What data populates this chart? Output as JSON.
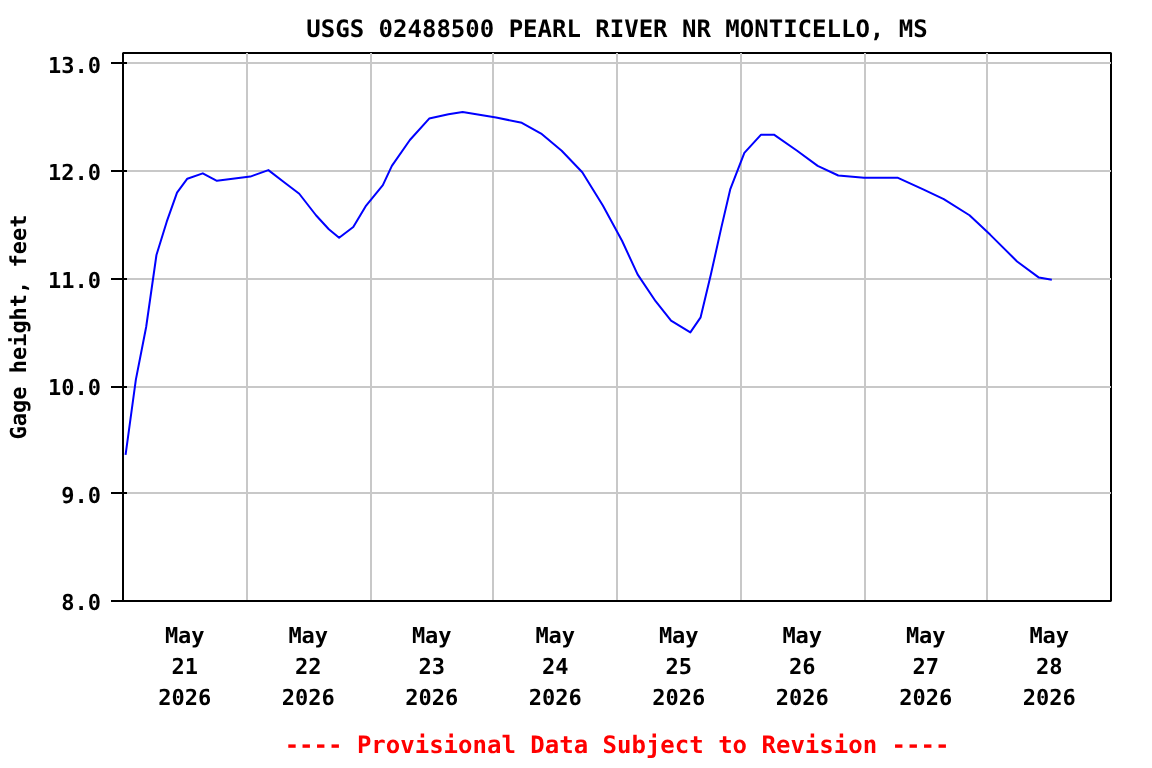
{
  "chart_data": {
    "type": "line",
    "title": "USGS 02488500 PEARL RIVER NR MONTICELLO, MS",
    "ylabel": "Gage height, feet",
    "annotations": [
      "---- Provisional Data Subject to Revision ----"
    ],
    "x": [
      "2026-05-21T00:30",
      "2026-05-21T02:30",
      "2026-05-21T04:30",
      "2026-05-21T06:30",
      "2026-05-21T08:30",
      "2026-05-21T10:30",
      "2026-05-21T12:30",
      "2026-05-21T15:30",
      "2026-05-21T18:15",
      "2026-05-22T00:45",
      "2026-05-22T04:15",
      "2026-05-22T07:15",
      "2026-05-22T10:15",
      "2026-05-22T13:30",
      "2026-05-22T16:00",
      "2026-05-22T18:00",
      "2026-05-22T20:45",
      "2026-05-22T23:15",
      "2026-05-23T02:30",
      "2026-05-23T04:15",
      "2026-05-23T07:45",
      "2026-05-23T11:30",
      "2026-05-23T15:15",
      "2026-05-23T18:00",
      "2026-05-24T00:30",
      "2026-05-24T05:30",
      "2026-05-24T09:15",
      "2026-05-24T13:15",
      "2026-05-24T17:15",
      "2026-05-24T21:15",
      "2026-05-25T01:00",
      "2026-05-25T04:00",
      "2026-05-25T07:30",
      "2026-05-25T10:30",
      "2026-05-25T14:15",
      "2026-05-25T16:15",
      "2026-05-25T18:15",
      "2026-05-25T20:15",
      "2026-05-25T22:00",
      "2026-05-26T00:45",
      "2026-05-26T04:00",
      "2026-05-26T06:30",
      "2026-05-26T11:00",
      "2026-05-26T15:00",
      "2026-05-26T19:00",
      "2026-05-27T00:00",
      "2026-05-27T06:30",
      "2026-05-27T11:30",
      "2026-05-27T15:30",
      "2026-05-27T20:30",
      "2026-05-28T00:30",
      "2026-05-28T05:45",
      "2026-05-28T10:00",
      "2026-05-28T12:30"
    ],
    "series": [
      {
        "color": "#0000ff",
        "values": [
          9.36,
          10.06,
          10.55,
          11.22,
          11.53,
          11.8,
          11.93,
          11.98,
          11.91,
          11.95,
          12.01,
          11.9,
          11.79,
          11.59,
          11.46,
          11.38,
          11.48,
          11.68,
          11.87,
          12.05,
          12.29,
          12.49,
          12.53,
          12.55,
          12.5,
          12.45,
          12.35,
          12.19,
          11.99,
          11.68,
          11.35,
          11.04,
          10.79,
          10.61,
          10.5,
          10.64,
          11.04,
          11.47,
          11.83,
          12.17,
          12.34,
          12.34,
          12.19,
          12.05,
          11.96,
          11.94,
          11.94,
          11.83,
          11.74,
          11.59,
          11.41,
          11.16,
          11.01,
          10.99
        ]
      }
    ],
    "xlim": [
      "2026-05-21",
      "2026-05-29"
    ],
    "xticks": [
      {
        "value": "2026-05-21T12:00",
        "label": "May\n21\n2026"
      },
      {
        "value": "2026-05-22T12:00",
        "label": "May\n22\n2026"
      },
      {
        "value": "2026-05-23T12:00",
        "label": "May\n23\n2026"
      },
      {
        "value": "2026-05-24T12:00",
        "label": "May\n24\n2026"
      },
      {
        "value": "2026-05-25T12:00",
        "label": "May\n25\n2026"
      },
      {
        "value": "2026-05-26T12:00",
        "label": "May\n26\n2026"
      },
      {
        "value": "2026-05-27T12:00",
        "label": "May\n27\n2026"
      },
      {
        "value": "2026-05-28T12:00",
        "label": "May\n28\n2026"
      },
      {
        "value": "2026-05-22",
        "label": null
      },
      {
        "value": "2026-05-23",
        "label": null
      },
      {
        "value": "2026-05-24",
        "label": null
      },
      {
        "value": "2026-05-25",
        "label": null
      },
      {
        "value": "2026-05-26",
        "label": null
      },
      {
        "value": "2026-05-27",
        "label": null
      },
      {
        "value": "2026-05-28",
        "label": null
      }
    ],
    "ylim": [
      8,
      13.1
    ],
    "yticks": [
      {
        "value": 8,
        "label": "8.0"
      },
      {
        "value": 9,
        "label": "9.0"
      },
      {
        "value": 10,
        "label": "10.0"
      },
      {
        "value": 11,
        "label": "11.0"
      },
      {
        "value": 12,
        "label": "12.0"
      },
      {
        "value": 13,
        "label": "13.0"
      }
    ],
    "grid": true,
    "marker": "none",
    "line_style": "solid"
  }
}
